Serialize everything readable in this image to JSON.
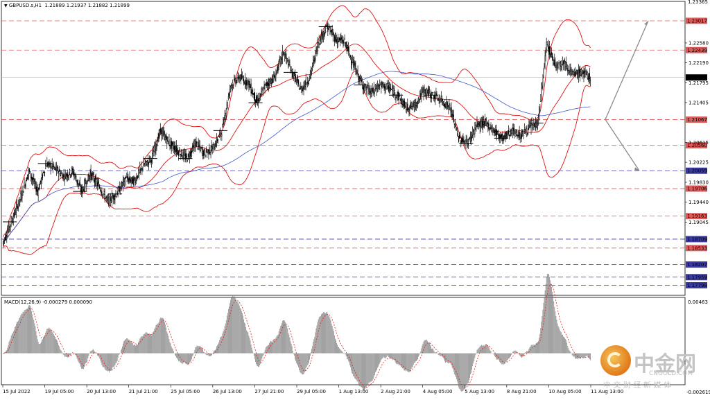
{
  "header": {
    "symbol": "GBPUSD.s,H1",
    "ohlc": "1.21889 1.21937 1.21882 1.21899",
    "macd_label": "MACD(12,26,9) -0.000279 0.000090"
  },
  "watermark": {
    "brand_cn": "中金网",
    "url": "CNGOLD.COM",
    "slogan_cn": "中 文 财 经 新 媒 体"
  },
  "chart_data": {
    "type": "candlestick",
    "symbol": "GBPUSD.s",
    "timeframe": "H1",
    "ylim": [
      1.176,
      1.234
    ],
    "y_ticks": [
      "1.22580",
      "1.22190",
      "1.21795",
      "1.21405",
      "1.20615",
      "1.20225",
      "1.19830",
      "1.19440",
      "1.19045"
    ],
    "top_tick": "1.23365",
    "x_ticks": [
      "15 Jul 2022",
      "19 Jul 05:00",
      "20 Jul 13:00",
      "21 Jul 21:00",
      "25 Jul 05:00",
      "26 Jul 13:00",
      "27 Jul 21:00",
      "29 Jul 05:00",
      "1 Aug 13:00",
      "2 Aug 21:00",
      "4 Aug 05:00",
      "5 Aug 13:00",
      "8 Aug 21:00",
      "10 Aug 05:00",
      "11 Aug 13:00"
    ],
    "current_price": "1.21899",
    "resistance_levels": [
      "1.23017",
      "1.22439",
      "1.21067",
      "1.20560",
      "1.19706",
      "1.19163",
      "1.18533"
    ],
    "support_levels": [
      "1.20059",
      "1.18709",
      "1.18207",
      "1.17959",
      "1.17798"
    ],
    "close_points": [
      1.1862,
      1.1905,
      1.195,
      1.2005,
      1.1965,
      1.202,
      1.201,
      1.1995,
      1.2005,
      1.1965,
      1.2,
      1.1975,
      1.1945,
      1.196,
      1.199,
      1.1985,
      1.2015,
      1.203,
      1.2085,
      1.206,
      1.2045,
      1.203,
      1.206,
      1.204,
      1.205,
      1.2085,
      1.2175,
      1.219,
      1.218,
      1.214,
      1.2175,
      1.219,
      1.224,
      1.22,
      1.2165,
      1.219,
      1.226,
      1.229,
      1.2265,
      1.226,
      1.2215,
      1.2175,
      1.216,
      1.2175,
      1.217,
      1.2155,
      1.213,
      1.2135,
      1.2165,
      1.2155,
      1.2145,
      1.213,
      1.207,
      1.206,
      1.2095,
      1.21,
      1.2085,
      1.207,
      1.2085,
      1.2075,
      1.209,
      1.21,
      1.2255,
      1.2215,
      1.222,
      1.2195,
      1.22,
      1.219
    ],
    "indicators": {
      "bollinger_bands": "red",
      "moving_average": "blue",
      "macd": {
        "fast": 12,
        "slow": 26,
        "signal": 9,
        "value": -0.000279,
        "signal_value": 9e-05,
        "ylim": [
          -0.00261,
          0.00463
        ],
        "top_tick": "0.00463",
        "bottom_tick": "-0.002619"
      }
    },
    "forecast_arrows": [
      "up",
      "down"
    ],
    "grid": false
  }
}
